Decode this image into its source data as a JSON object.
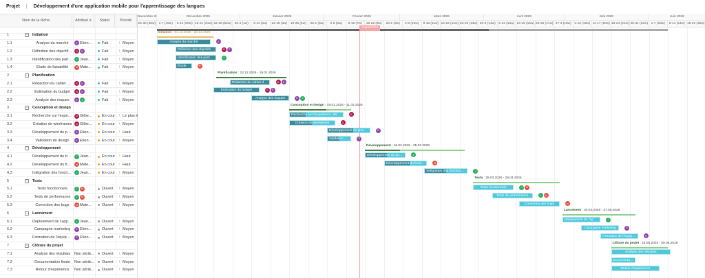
{
  "header": {
    "section": "Projet",
    "title": "Développement d'une application mobile pour l'apprentissage des langues"
  },
  "table_headers": {
    "name": "Nom de la tâche",
    "assignee": "Attribué à",
    "status": "Statut",
    "priority": "Priorité"
  },
  "timeline": {
    "months": [
      {
        "label": "Novembre 2025",
        "start": "2025-11-24",
        "end": "2025-12-01"
      },
      {
        "label": "Décembre 2025",
        "start": "2025-12-01",
        "end": "2026-01-01"
      },
      {
        "label": "Janvier 2026",
        "start": "2026-01-01",
        "end": "2026-02-01"
      },
      {
        "label": "Février 2026",
        "start": "2026-02-01",
        "end": "2026-03-01"
      },
      {
        "label": "Mars 2026",
        "start": "2026-03-01",
        "end": "2026-04-01"
      },
      {
        "label": "Avril 2026",
        "start": "2026-04-01",
        "end": "2026-05-01"
      },
      {
        "label": "Mai 2026",
        "start": "2026-05-01",
        "end": "2026-06-01"
      },
      {
        "label": "Juin 2026",
        "start": "2026-06-01",
        "end": "2026-06-22"
      }
    ],
    "weeks": [
      "24-30 (48w)",
      "1-7 (49w)",
      "8-14 (50w)",
      "15-21 (51w)",
      "22-28 (52w)",
      "29-4 (1w)",
      "5-11 (2w)",
      "12-18 (3w)",
      "19-25 (4w)",
      "26-1 (5w)",
      "2-8 (6w)",
      "9-15 (7w)",
      "16-22 (8w)",
      "23-1 (9w)",
      "2-8 (10w)",
      "9-15 (11w)",
      "16-22 (12w)",
      "23-29 (13w)",
      "30-5 (14w)",
      "6-12 (15w)",
      "13-19 (16w)",
      "20-26 (17w)",
      "27-3 (18w)",
      "4-10 (19w)",
      "11-17 (20w)",
      "18-24 (21w)",
      "25-31 (22w)",
      "1-7 (23w)",
      "8-14 (24w)",
      "15-21 (25w)"
    ],
    "origin": "2025-11-24",
    "today": "2026-02-14",
    "today_label": "Aujourd'hui",
    "project": {
      "start": "2025-12-01",
      "end": "2026-06-08",
      "progress": 0.65
    }
  },
  "people": {
    "E": {
      "initial": "E",
      "color": "#8e44ad"
    },
    "G": {
      "initial": "G",
      "color": "#b0194f"
    },
    "J": {
      "initial": "J",
      "color": "#27ae60"
    },
    "M": {
      "initial": "M",
      "color": "#e74c3c"
    }
  },
  "statuses": {
    "Fait": "#3bb5d9",
    "En cour": "#f39c12",
    "Ouvert": "#999999"
  },
  "priorities": {
    "Moyen": {
      "color": "#27ae60",
      "icon": "arrow-up"
    },
    "Haut": {
      "color": "#f39c12",
      "icon": "arrow-up"
    },
    "Le plus élevé": {
      "color": "#e74c3c",
      "icon": "arrow-up"
    }
  },
  "rows": [
    {
      "id": "1",
      "name": "Initiation",
      "section": true,
      "start": "2025-12-01",
      "end": "2025-12-22",
      "progress": 1,
      "color": "#f0b862"
    },
    {
      "id": "1.1",
      "name": "Analyse du marché",
      "assignees": [
        "E"
      ],
      "assignee_text": "Etien...",
      "status": "Fait",
      "priority": "Moyen",
      "start": "2025-12-01",
      "end": "2025-12-21",
      "progress": 1
    },
    {
      "id": "1.2",
      "name": "Définition des objectifs du projet",
      "assignees": [
        "G",
        "E"
      ],
      "assignee_text": "",
      "status": "Fait",
      "priority": "Moyen",
      "start": "2025-12-08",
      "end": "2025-12-23",
      "progress": 1
    },
    {
      "id": "1.3",
      "name": "Identification des parties prenantes",
      "assignees": [
        "J"
      ],
      "assignee_text": "Jean...",
      "status": "Fait",
      "priority": "Moyen",
      "start": "2025-12-08",
      "end": "2025-12-23",
      "progress": 1
    },
    {
      "id": "1.4",
      "name": "Étude de faisabilité",
      "assignees": [
        "M"
      ],
      "assignee_text": "Mate...",
      "status": "Fait",
      "priority": "Moyen",
      "start": "2025-12-08",
      "end": "2025-12-14",
      "progress": 1
    },
    {
      "id": "2",
      "name": "Planification",
      "section": true,
      "start": "2025-12-23",
      "end": "2026-01-18",
      "progress": 1
    },
    {
      "id": "2.1",
      "name": "Rédaction du cahier des charges",
      "assignees": [
        "G",
        "E"
      ],
      "assignee_text": "",
      "status": "Fait",
      "priority": "Moyen",
      "start": "2025-12-28",
      "end": "2026-01-12",
      "progress": 1
    },
    {
      "id": "2.2",
      "name": "Estimation du budget",
      "assignees": [
        "G",
        "E"
      ],
      "assignee_text": "",
      "status": "Fait",
      "priority": "Moyen",
      "start": "2025-12-22",
      "end": "2026-01-08",
      "progress": 1
    },
    {
      "id": "2.3",
      "name": "Analyse des risques",
      "assignees": [
        "E",
        "J"
      ],
      "assignee_text": "",
      "status": "Fait",
      "priority": "Moyen",
      "start": "2026-01-05",
      "end": "2026-01-19",
      "progress": 1
    },
    {
      "id": "3",
      "name": "Conception et design",
      "section": true,
      "start": "2026-01-19",
      "end": "2026-02-11",
      "progress": 0.6
    },
    {
      "id": "3.1",
      "name": "Recherche sur l'expérience utilisateur",
      "assignees": [
        "G"
      ],
      "assignee_text": "Gilbe...",
      "status": "En cour",
      "priority": "Le plus élevé",
      "start": "2026-01-19",
      "end": "2026-02-08",
      "progress": 0.3
    },
    {
      "id": "3.2",
      "name": "Création de wireframes",
      "assignees": [
        "G"
      ],
      "assignee_text": "Gilbe...",
      "status": "En cour",
      "priority": "Moyen",
      "start": "2026-01-19",
      "end": "2026-02-05",
      "progress": 0.5
    },
    {
      "id": "3.3",
      "name": "Développement du prototype",
      "assignees": [
        "E"
      ],
      "assignee_text": "Etien...",
      "status": "En cour",
      "priority": "Haut",
      "start": "2026-02-02",
      "end": "2026-02-18",
      "progress": 0.6
    },
    {
      "id": "3.4",
      "name": "Validation du design",
      "assignees": [
        "E"
      ],
      "assignee_text": "Etien...",
      "status": "En cour",
      "priority": "Moyen",
      "start": "2026-02-02",
      "end": "2026-02-11",
      "progress": 0.5
    },
    {
      "id": "4",
      "name": "Développement",
      "section": true,
      "start": "2026-02-16",
      "end": "2026-03-25",
      "progress": 0.35
    },
    {
      "id": "4.1",
      "name": "Développement du backend",
      "assignees": [
        "J"
      ],
      "assignee_text": "Jean...",
      "status": "En cour",
      "priority": "Haut",
      "start": "2026-02-16",
      "end": "2026-03-03",
      "progress": 0.55
    },
    {
      "id": "4.2",
      "name": "Développement du frontend",
      "assignees": [
        "M"
      ],
      "assignee_text": "Mate...",
      "status": "En cour",
      "priority": "Haut",
      "start": "2026-02-23",
      "end": "2026-03-11",
      "progress": 0.6
    },
    {
      "id": "4.3",
      "name": "Intégration des fonctionnalités",
      "assignees": [
        "J"
      ],
      "assignee_text": "Jean...",
      "status": "En cour",
      "priority": "Moyen",
      "start": "2026-03-10",
      "end": "2026-03-26",
      "progress": 0.5
    },
    {
      "id": "5",
      "name": "Tests",
      "section": true,
      "start": "2026-03-28",
      "end": "2026-04-29",
      "progress": 0
    },
    {
      "id": "5.1",
      "name": "Tests fonctionnels",
      "assignees": [
        "J",
        "M"
      ],
      "assignee_text": "",
      "status": "Ouvert",
      "priority": "Moyen",
      "start": "2026-03-28",
      "end": "2026-04-12",
      "progress": 0
    },
    {
      "id": "5.2",
      "name": "Tests de performance",
      "assignees": [
        "J",
        "M"
      ],
      "assignee_text": "",
      "status": "Ouvert",
      "priority": "Moyen",
      "start": "2026-04-04",
      "end": "2026-04-19",
      "progress": 0
    },
    {
      "id": "5.3",
      "name": "Correction des bugs",
      "assignees": [
        "M"
      ],
      "assignee_text": "Mate...",
      "status": "Ouvert",
      "priority": "Moyen",
      "start": "2026-04-14",
      "end": "2026-04-29",
      "progress": 0
    },
    {
      "id": "6",
      "name": "Lancement",
      "section": true,
      "start": "2026-04-30",
      "end": "2026-05-27",
      "progress": 0
    },
    {
      "id": "6.1",
      "name": "Déploiement de l'application",
      "assignees": [
        "J"
      ],
      "assignee_text": "Jean...",
      "status": "Ouvert",
      "priority": "Moyen",
      "start": "2026-04-30",
      "end": "2026-05-14",
      "progress": 0
    },
    {
      "id": "6.2",
      "name": "Campagne marketing",
      "assignees": [
        "E"
      ],
      "assignee_text": "Etien...",
      "status": "Ouvert",
      "priority": "Moyen",
      "start": "2026-05-07",
      "end": "2026-05-21",
      "progress": 0
    },
    {
      "id": "6.3",
      "name": "Formation de l'équipe support",
      "assignees": [
        "E"
      ],
      "assignee_text": "Etien...",
      "status": "Ouvert",
      "priority": "Moyen",
      "start": "2026-05-14",
      "end": "2026-05-28",
      "progress": 0
    },
    {
      "id": "7",
      "name": "Clôture du projet",
      "section": true,
      "start": "2026-05-18",
      "end": "2026-06-08",
      "progress": 0
    },
    {
      "id": "7.1",
      "name": "Analyse des résultats",
      "assignees": [],
      "assignee_text": "Non attrib...",
      "status": "Ouvert",
      "priority": "Moyen",
      "start": "2026-05-18",
      "end": "2026-06-09",
      "progress": 0
    },
    {
      "id": "7.2",
      "name": "Documentation finale",
      "assignees": [],
      "assignee_text": "Non attrib...",
      "status": "Ouvert",
      "priority": "Moyen",
      "start": "2026-05-18",
      "end": "2026-05-27",
      "progress": 0
    },
    {
      "id": "7.3",
      "name": "Retour d'expérience",
      "assignees": [],
      "assignee_text": "Non attrib...",
      "status": "Ouvert",
      "priority": "Moyen",
      "start": "2026-05-18",
      "end": "2026-06-05",
      "progress": 0
    }
  ]
}
